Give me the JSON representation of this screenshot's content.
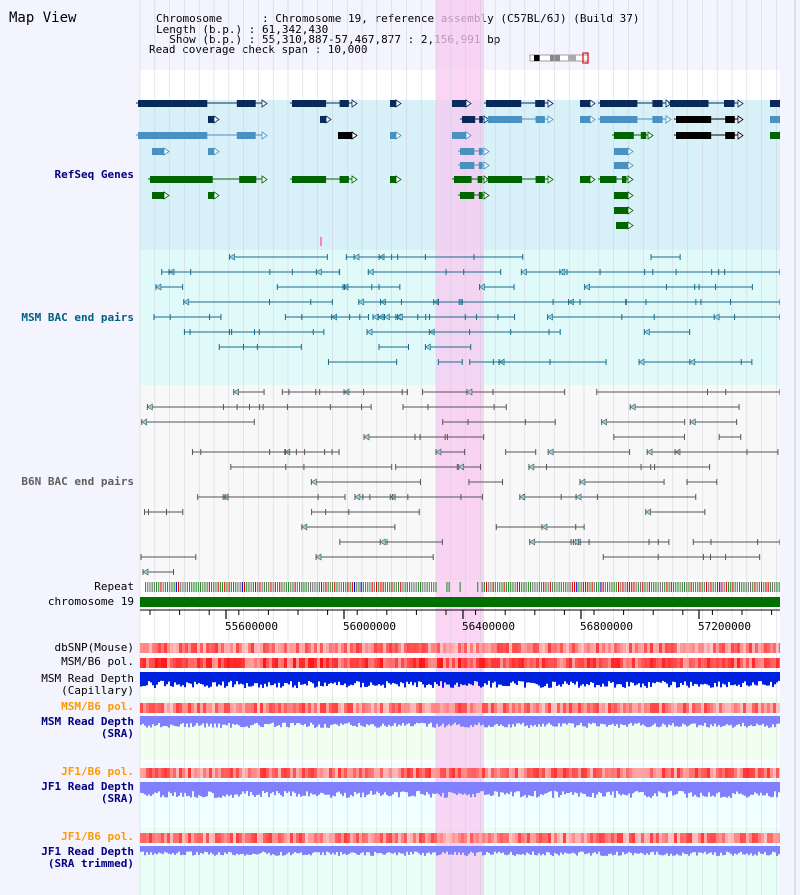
{
  "header": {
    "view_title": "Map View",
    "info_lines": [
      "Chromosome      : Chromosome 19, reference assembly (C57BL/6J) (Build 37)",
      "Length (b.p.) : 61,342,430",
      "  Show (b.p.) : 55,310,887-57,467,877 : 2,156,991 bp",
      "Read coverage check span : 10,000"
    ]
  },
  "tracks": {
    "refseq": "RefSeq Genes",
    "msm_bac": "MSM BAC end pairs",
    "b6n_bac": "B6N BAC end pairs",
    "repeat": "Repeat",
    "chromosome": "chromosome 19",
    "dbsnp": "dbSNP(Mouse)",
    "msm_b6_pol": "MSM/B6 pol.",
    "msm_read_depth_cap_1": "MSM Read Depth",
    "msm_read_depth_cap_2": "(Capillary)",
    "msm_b6_pol_2": "MSM/B6 pol.",
    "msm_read_depth_sra_1": "MSM Read Depth",
    "msm_read_depth_sra_2": "(SRA)",
    "jf1_b6_pol": "JF1/B6 pol.",
    "jf1_read_depth_sra_1": "JF1 Read Depth",
    "jf1_read_depth_sra_2": "(SRA)",
    "jf1_b6_pol_2": "JF1/B6 pol.",
    "jf1_read_depth_trim_1": "JF1 Read Depth",
    "jf1_read_depth_trim_2": "(SRA trimmed)"
  },
  "axis": {
    "ticks": [
      "55600000",
      "56000000",
      "56400000",
      "56800000",
      "57200000"
    ]
  },
  "colors": {
    "refseq_bg": "#d8f0f8",
    "msm_bg": "#e0fafa",
    "b6n_bg": "#f8f8f8",
    "highlight": "#f8c8f0",
    "gene_dark": "#0a2a5a",
    "gene_mid": "#4a90c0",
    "gene_green": "#006400",
    "msm_line": "#1a6a8a",
    "b6n_line": "#555555",
    "chromosome": "#007000",
    "pol_red": "#ff3030",
    "depth_blue": "#0020e0",
    "depth_light": "#8080ff",
    "label_navy": "#000080",
    "label_teal": "#006080",
    "label_orange": "#ff9900"
  }
}
